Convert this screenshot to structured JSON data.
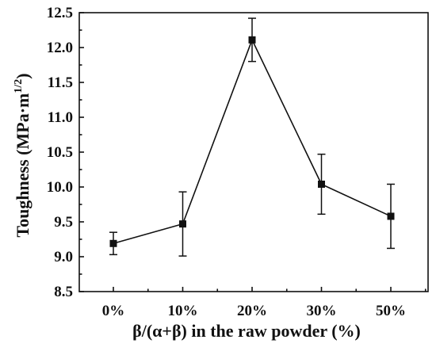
{
  "chart_data": {
    "type": "line",
    "categories": [
      "0%",
      "10%",
      "20%",
      "30%",
      "50%"
    ],
    "series": [
      {
        "values": [
          9.19,
          9.47,
          12.11,
          10.04,
          9.58
        ],
        "error": [
          0.16,
          0.46,
          0.31,
          0.43,
          0.46
        ],
        "marker": "square"
      }
    ],
    "xlabel": "β/(α+β) in the raw powder (%)",
    "ylabel": {
      "text": "Toughness (MPa·m",
      "superscript": "1/2",
      "suffix": ")"
    },
    "ylim": [
      8.5,
      12.5
    ],
    "yticks": [
      "8.5",
      "9.0",
      "9.5",
      "10.0",
      "10.5",
      "11.0",
      "11.5",
      "12.0",
      "12.5"
    ],
    "grid": false,
    "colors": {
      "series": "#111111",
      "axes": "#111111"
    }
  }
}
